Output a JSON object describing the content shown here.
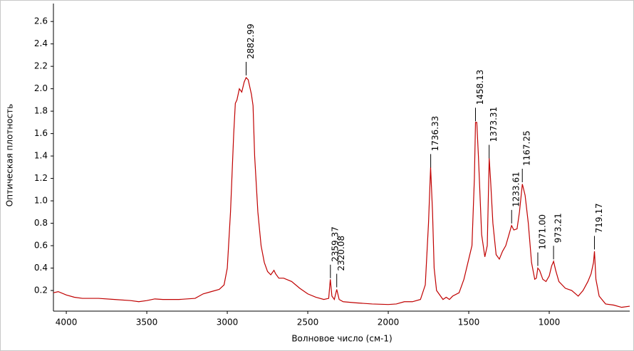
{
  "chart_data": {
    "type": "line",
    "xlabel": "Волновое число (см-1)",
    "ylabel": "Оптическая плотность",
    "color": "#c00000",
    "xlim": [
      4080,
      500
    ],
    "ylim": [
      0.016,
      2.76
    ],
    "xticks": [
      4000,
      3500,
      3000,
      2500,
      2000,
      1500,
      1000
    ],
    "yticks": [
      0.2,
      0.4,
      0.6,
      0.8,
      {
        "value": 1.0,
        "label": "1.0"
      },
      1.2,
      1.4,
      1.6,
      1.8,
      {
        "value": 2.0,
        "label": "2.0"
      },
      2.2,
      2.4,
      2.6
    ],
    "x": [
      4080,
      4050,
      4000,
      3950,
      3900,
      3800,
      3700,
      3600,
      3550,
      3500,
      3450,
      3400,
      3300,
      3200,
      3150,
      3100,
      3050,
      3020,
      3000,
      2980,
      2960,
      2950,
      2940,
      2925,
      2910,
      2895,
      2883,
      2870,
      2850,
      2840,
      2830,
      2810,
      2790,
      2770,
      2750,
      2730,
      2710,
      2700,
      2680,
      2650,
      2600,
      2550,
      2500,
      2450,
      2400,
      2370,
      2360,
      2350,
      2335,
      2320,
      2305,
      2280,
      2200,
      2100,
      2000,
      1950,
      1900,
      1850,
      1800,
      1770,
      1750,
      1737,
      1725,
      1715,
      1700,
      1660,
      1640,
      1620,
      1600,
      1560,
      1530,
      1500,
      1480,
      1465,
      1458,
      1450,
      1440,
      1420,
      1400,
      1385,
      1373,
      1365,
      1350,
      1330,
      1310,
      1290,
      1270,
      1250,
      1234,
      1220,
      1200,
      1185,
      1167,
      1150,
      1130,
      1110,
      1090,
      1080,
      1071,
      1060,
      1040,
      1020,
      1000,
      985,
      973,
      960,
      940,
      900,
      860,
      820,
      790,
      760,
      740,
      725,
      719,
      710,
      690,
      650,
      600,
      550,
      500
    ],
    "values": [
      0.18,
      0.19,
      0.16,
      0.14,
      0.13,
      0.13,
      0.12,
      0.11,
      0.1,
      0.11,
      0.125,
      0.12,
      0.12,
      0.13,
      0.17,
      0.19,
      0.21,
      0.25,
      0.4,
      0.9,
      1.6,
      1.87,
      1.9,
      2.0,
      1.97,
      2.06,
      2.1,
      2.08,
      1.95,
      1.85,
      1.4,
      0.9,
      0.6,
      0.45,
      0.37,
      0.34,
      0.38,
      0.35,
      0.31,
      0.31,
      0.28,
      0.22,
      0.17,
      0.14,
      0.12,
      0.13,
      0.3,
      0.15,
      0.12,
      0.21,
      0.12,
      0.1,
      0.09,
      0.08,
      0.075,
      0.08,
      0.1,
      0.1,
      0.12,
      0.25,
      0.8,
      1.3,
      0.9,
      0.4,
      0.2,
      0.12,
      0.14,
      0.12,
      0.15,
      0.18,
      0.3,
      0.48,
      0.6,
      1.2,
      1.7,
      1.7,
      1.4,
      0.7,
      0.5,
      0.6,
      1.38,
      1.2,
      0.8,
      0.52,
      0.48,
      0.55,
      0.6,
      0.7,
      0.78,
      0.74,
      0.75,
      0.9,
      1.15,
      1.05,
      0.8,
      0.45,
      0.3,
      0.31,
      0.4,
      0.38,
      0.3,
      0.28,
      0.33,
      0.42,
      0.46,
      0.38,
      0.28,
      0.22,
      0.2,
      0.15,
      0.2,
      0.28,
      0.35,
      0.45,
      0.55,
      0.3,
      0.15,
      0.08,
      0.07,
      0.05,
      0.06
    ],
    "peaks": [
      2882.99,
      2359.37,
      2320.08,
      1736.33,
      1458.13,
      1373.31,
      1233.61,
      1167.25,
      {
        "value": 1071.0,
        "label": "1071.00"
      },
      973.21,
      719.17
    ]
  }
}
